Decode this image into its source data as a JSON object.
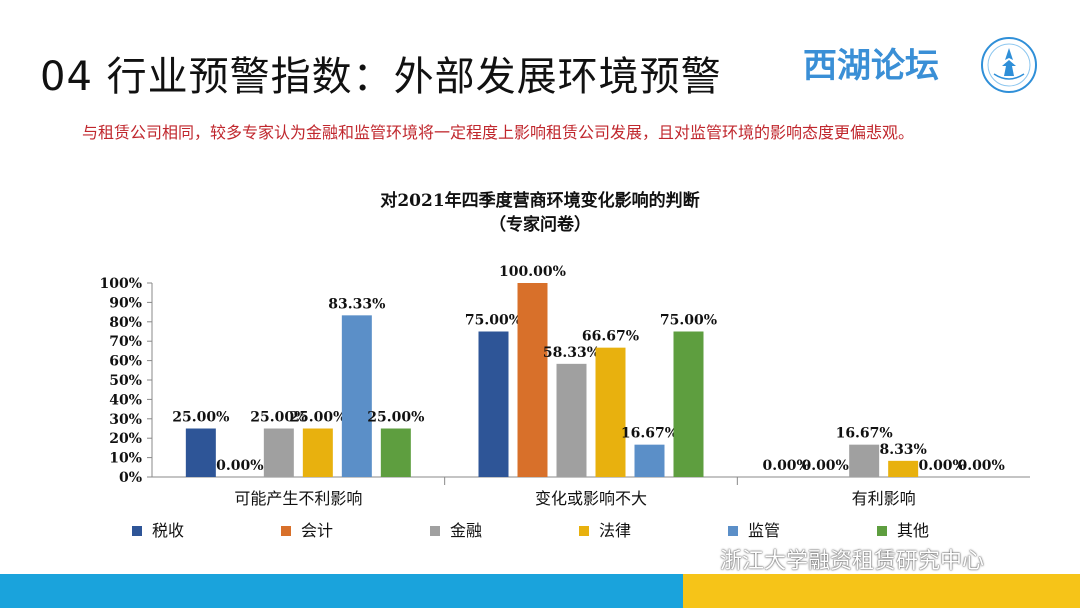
{
  "header": {
    "title": "04 行业预警指数：外部发展环境预警",
    "brand": "西湖论坛"
  },
  "intro": "与租赁公司相同，较多专家认为金融和监管环境将一定程度上影响租赁公司发展，且对监管环境的影响态度更偏悲观。",
  "footer": {
    "org": "浙江大学融资租赁研究中心"
  },
  "colors": {
    "税收": "#2e5597",
    "会计": "#d8702a",
    "金融": "#a0a0a0",
    "法律": "#e8b10e",
    "监管": "#5b8fc8",
    "其他": "#5e9e3f",
    "footer_blue": "#1aa3dc",
    "footer_yellow": "#f6c418",
    "intro_red": "#c0272d"
  },
  "chart_data": {
    "type": "bar",
    "title": "对2021年四季度营商环境变化影响的判断",
    "subtitle": "（专家问卷）",
    "categories": [
      "可能产生不利影响",
      "变化或影响不大",
      "有利影响"
    ],
    "series": [
      {
        "name": "税收",
        "values": [
          25.0,
          75.0,
          0.0
        ],
        "labels": [
          "25.00%",
          "75.00%",
          "0.00%"
        ]
      },
      {
        "name": "会计",
        "values": [
          0.0,
          100.0,
          0.0
        ],
        "labels": [
          "0.00%",
          "100.00%",
          "0.00%"
        ]
      },
      {
        "name": "金融",
        "values": [
          25.0,
          58.33,
          16.67
        ],
        "labels": [
          "25.00%",
          "58.33%",
          "16.67%"
        ]
      },
      {
        "name": "法律",
        "values": [
          25.0,
          66.67,
          8.33
        ],
        "labels": [
          "25.00%",
          "66.67%",
          "8.33%"
        ]
      },
      {
        "name": "监管",
        "values": [
          83.33,
          16.67,
          0.0
        ],
        "labels": [
          "83.33%",
          "16.67%",
          "0.00%"
        ]
      },
      {
        "name": "其他",
        "values": [
          25.0,
          75.0,
          0.0
        ],
        "labels": [
          "25.00%",
          "75.00%",
          "0.00%"
        ]
      }
    ],
    "ylim": [
      0,
      100
    ],
    "yticks": [
      "0%",
      "10%",
      "20%",
      "30%",
      "40%",
      "50%",
      "60%",
      "70%",
      "80%",
      "90%",
      "100%"
    ],
    "legend": "bottom",
    "grid": false
  }
}
